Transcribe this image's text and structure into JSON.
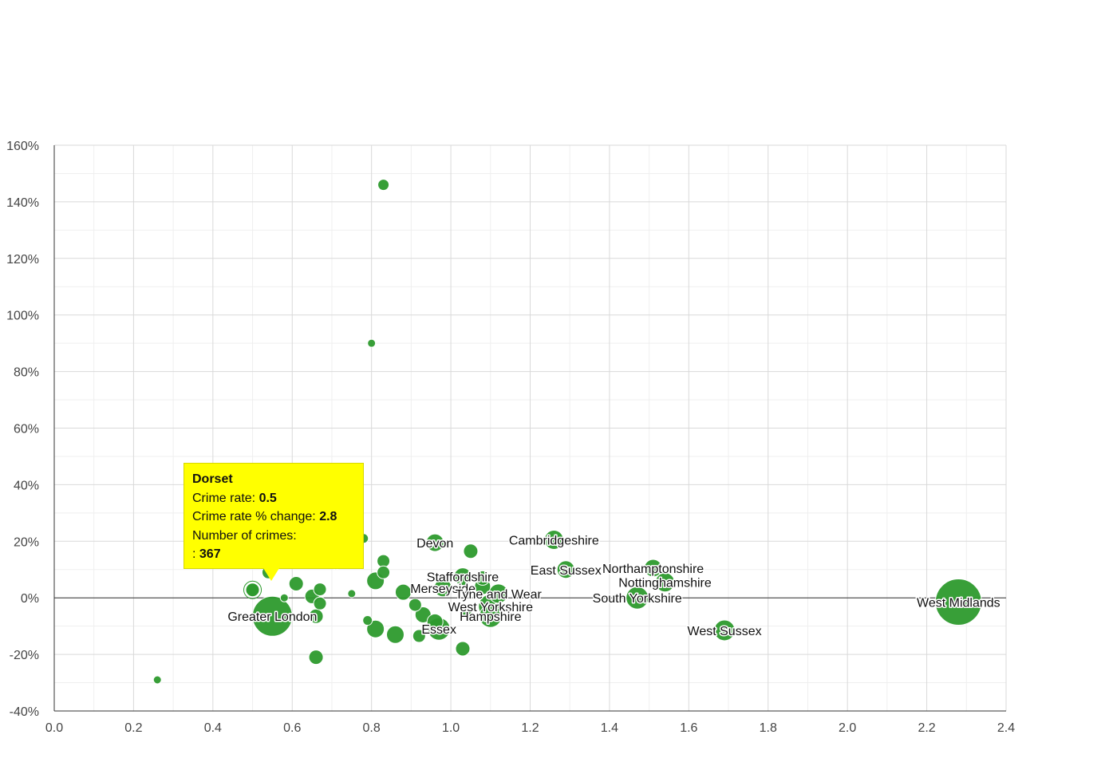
{
  "colors": {
    "bubble": "#2d9a2d",
    "bubble_stroke": "#ffffff",
    "grid": "#d9d9d9",
    "minor_grid": "#efefef",
    "axis": "#333333",
    "tooltip_bg": "#ffff00"
  },
  "tooltip": {
    "title": "Dorset",
    "crime_rate_label": "Crime rate:",
    "crime_rate_value": "0.5",
    "change_label": "Crime rate % change:",
    "change_value": "2.8",
    "count_label": "Number of crimes:",
    "count_prefix": ":",
    "count_value": "367"
  },
  "chart_data": {
    "type": "scatter",
    "subtype": "bubble",
    "title": "",
    "xlabel": "",
    "ylabel": "",
    "xlim": [
      0,
      2.4
    ],
    "ylim": [
      -40,
      160
    ],
    "x_ticks": [
      0,
      0.2,
      0.4,
      0.6,
      0.8,
      1.0,
      1.2,
      1.4,
      1.6,
      1.8,
      2.0,
      2.2,
      2.4
    ],
    "x_tick_labels": [
      "0.0",
      "0.2",
      "0.4",
      "0.6",
      "0.8",
      "1.0",
      "1.2",
      "1.4",
      "1.6",
      "1.8",
      "2.0",
      "2.2",
      "2.4"
    ],
    "y_ticks": [
      -40,
      -20,
      0,
      20,
      40,
      60,
      80,
      100,
      120,
      140,
      160
    ],
    "y_tick_labels": [
      "-40%",
      "-20%",
      "0%",
      "20%",
      "40%",
      "60%",
      "80%",
      "100%",
      "120%",
      "140%",
      "160%"
    ],
    "grid": true,
    "highlighted_point": "Dorset",
    "points": [
      {
        "name": "West Midlands",
        "x": 2.28,
        "y": -1.5,
        "r": 29,
        "label": true
      },
      {
        "name": "West Sussex",
        "x": 1.69,
        "y": -11.5,
        "r": 13,
        "label": true
      },
      {
        "name": "South Yorkshire",
        "x": 1.47,
        "y": 0,
        "r": 14,
        "label": true
      },
      {
        "name": "Nottinghamshire",
        "x": 1.54,
        "y": 5.5,
        "r": 12,
        "label": true
      },
      {
        "name": "Northamptonshire",
        "x": 1.51,
        "y": 10.5,
        "r": 11,
        "label": true
      },
      {
        "name": "East Sussex",
        "x": 1.29,
        "y": 10,
        "r": 11,
        "label": true
      },
      {
        "name": "Cambridgeshire",
        "x": 1.26,
        "y": 20.5,
        "r": 12,
        "label": true
      },
      {
        "name": "Devon",
        "x": 0.96,
        "y": 19.5,
        "r": 11,
        "label": true
      },
      {
        "name": "Staffordshire",
        "x": 1.03,
        "y": 7.5,
        "r": 11,
        "label": true
      },
      {
        "name": "Merseyside",
        "x": 0.98,
        "y": 3.5,
        "r": 11,
        "label": true
      },
      {
        "name": "Tyne and Wear",
        "x": 1.12,
        "y": 1.5,
        "r": 12,
        "label": true
      },
      {
        "name": "West Yorkshire",
        "x": 1.1,
        "y": -3,
        "r": 15,
        "label": true
      },
      {
        "name": "Hampshire",
        "x": 1.1,
        "y": -6.5,
        "r": 14,
        "label": true
      },
      {
        "name": "Essex",
        "x": 0.97,
        "y": -11,
        "r": 14,
        "label": true
      },
      {
        "name": "Greater London",
        "x": 0.55,
        "y": -6.5,
        "r": 25,
        "label": true
      },
      {
        "name": "Dorset",
        "x": 0.5,
        "y": 2.8,
        "r": 9,
        "label": false
      },
      {
        "name": "",
        "x": 0.83,
        "y": 146,
        "r": 7,
        "label": false
      },
      {
        "name": "",
        "x": 0.8,
        "y": 90,
        "r": 5,
        "label": false
      },
      {
        "name": "",
        "x": 0.26,
        "y": -29,
        "r": 5,
        "label": false
      },
      {
        "name": "",
        "x": 1.05,
        "y": 16.5,
        "r": 9,
        "label": false
      },
      {
        "name": "",
        "x": 0.83,
        "y": 13,
        "r": 8,
        "label": false
      },
      {
        "name": "",
        "x": 0.83,
        "y": 9,
        "r": 8,
        "label": false
      },
      {
        "name": "",
        "x": 0.81,
        "y": 6,
        "r": 11,
        "label": false
      },
      {
        "name": "",
        "x": 0.88,
        "y": 2,
        "r": 10,
        "label": false
      },
      {
        "name": "",
        "x": 0.91,
        "y": -2.5,
        "r": 8,
        "label": false
      },
      {
        "name": "",
        "x": 0.93,
        "y": -6,
        "r": 10,
        "label": false
      },
      {
        "name": "",
        "x": 0.96,
        "y": -8.5,
        "r": 10,
        "label": false
      },
      {
        "name": "",
        "x": 0.81,
        "y": -11,
        "r": 11,
        "label": false
      },
      {
        "name": "",
        "x": 0.86,
        "y": -13,
        "r": 11,
        "label": false
      },
      {
        "name": "",
        "x": 0.92,
        "y": -13.5,
        "r": 8,
        "label": false
      },
      {
        "name": "",
        "x": 1.03,
        "y": -18,
        "r": 9,
        "label": false
      },
      {
        "name": "",
        "x": 0.79,
        "y": -8,
        "r": 6,
        "label": false
      },
      {
        "name": "",
        "x": 0.75,
        "y": 1.5,
        "r": 5,
        "label": false
      },
      {
        "name": "",
        "x": 1.04,
        "y": -5.5,
        "r": 6,
        "label": false
      },
      {
        "name": "",
        "x": 1.08,
        "y": 4,
        "r": 10,
        "label": false
      },
      {
        "name": "",
        "x": 1.08,
        "y": 7,
        "r": 9,
        "label": false
      },
      {
        "name": "",
        "x": 0.66,
        "y": -21,
        "r": 9,
        "label": false
      },
      {
        "name": "",
        "x": 0.66,
        "y": -6.5,
        "r": 9,
        "label": false
      },
      {
        "name": "",
        "x": 0.67,
        "y": -2,
        "r": 8,
        "label": false
      },
      {
        "name": "",
        "x": 0.65,
        "y": 0.5,
        "r": 9,
        "label": false
      },
      {
        "name": "",
        "x": 0.67,
        "y": 3,
        "r": 8,
        "label": false
      },
      {
        "name": "",
        "x": 0.61,
        "y": 5,
        "r": 9,
        "label": false
      },
      {
        "name": "",
        "x": 0.58,
        "y": 0,
        "r": 5,
        "label": false
      },
      {
        "name": "",
        "x": 0.54,
        "y": 9,
        "r": 8,
        "label": false
      },
      {
        "name": "",
        "x": 0.71,
        "y": 12,
        "r": 7,
        "label": false
      },
      {
        "name": "",
        "x": 0.78,
        "y": 21,
        "r": 6,
        "label": false
      }
    ]
  }
}
